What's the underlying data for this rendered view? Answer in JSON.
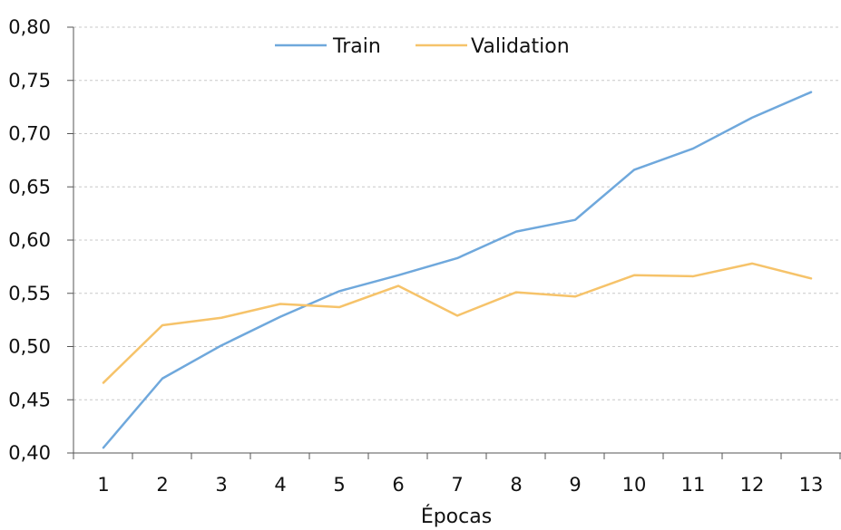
{
  "chart_data": {
    "type": "line",
    "xlabel": "Épocas",
    "ylabel": "",
    "categories": [
      "1",
      "2",
      "3",
      "4",
      "5",
      "6",
      "7",
      "8",
      "9",
      "10",
      "11",
      "12",
      "13"
    ],
    "ylim": [
      0.4,
      0.8
    ],
    "yticks": [
      "0,40",
      "0,45",
      "0,50",
      "0,55",
      "0,60",
      "0,65",
      "0,70",
      "0,75",
      "0,80"
    ],
    "grid": true,
    "legend_position": "top-center",
    "series": [
      {
        "name": "Train",
        "color": "#6fa8dc",
        "values": [
          0.405,
          0.47,
          0.501,
          0.528,
          0.552,
          0.567,
          0.583,
          0.608,
          0.619,
          0.666,
          0.686,
          0.715,
          0.739
        ]
      },
      {
        "name": "Validation",
        "color": "#f6c36a",
        "values": [
          0.466,
          0.52,
          0.527,
          0.54,
          0.537,
          0.557,
          0.529,
          0.551,
          0.547,
          0.567,
          0.566,
          0.578,
          0.564
        ]
      }
    ]
  }
}
